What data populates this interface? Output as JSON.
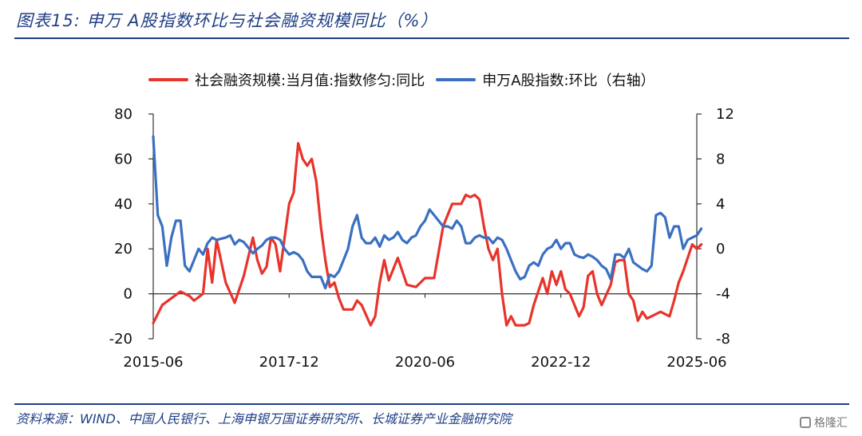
{
  "title": "图表15:  申万 A股指数环比与社会融资规模同比（%）",
  "source": "资料来源：WIND、中国人民银行、上海申银万国证券研究所、长城证券产业金融研究院",
  "logo_text": "格隆汇",
  "chart_data": {
    "type": "line",
    "title": "",
    "x_ticks": [
      "2015-06",
      "2017-12",
      "2020-06",
      "2022-12",
      "2025-06"
    ],
    "x_range": [
      "2015-06",
      "2025-06"
    ],
    "y_left": {
      "range": [
        -20,
        80
      ],
      "ticks": [
        -20,
        0,
        20,
        40,
        60,
        80
      ]
    },
    "y_right": {
      "range": [
        -8,
        12
      ],
      "ticks": [
        -8,
        -4,
        0,
        4,
        8,
        12
      ]
    },
    "legend_position": "top",
    "grid": false,
    "series": [
      {
        "name": "社会融资规模:当月值:指数修匀:同比",
        "axis": "left",
        "color": "#e8332b",
        "points": [
          [
            "2015-06",
            -13
          ],
          [
            "2015-08",
            -5
          ],
          [
            "2015-10",
            -2
          ],
          [
            "2015-12",
            1
          ],
          [
            "2016-02",
            -1
          ],
          [
            "2016-03",
            -3
          ],
          [
            "2016-05",
            0
          ],
          [
            "2016-06",
            20
          ],
          [
            "2016-07",
            5
          ],
          [
            "2016-08",
            24
          ],
          [
            "2016-10",
            5
          ],
          [
            "2016-12",
            -4
          ],
          [
            "2017-02",
            8
          ],
          [
            "2017-04",
            25
          ],
          [
            "2017-05",
            15
          ],
          [
            "2017-06",
            9
          ],
          [
            "2017-07",
            12
          ],
          [
            "2017-08",
            25
          ],
          [
            "2017-09",
            22
          ],
          [
            "2017-10",
            10
          ],
          [
            "2017-12",
            40
          ],
          [
            "2018-01",
            45
          ],
          [
            "2018-02",
            67
          ],
          [
            "2018-03",
            60
          ],
          [
            "2018-04",
            57
          ],
          [
            "2018-05",
            60
          ],
          [
            "2018-06",
            50
          ],
          [
            "2018-07",
            30
          ],
          [
            "2018-08",
            15
          ],
          [
            "2018-09",
            3
          ],
          [
            "2018-10",
            5
          ],
          [
            "2018-11",
            -2
          ],
          [
            "2018-12",
            -7
          ],
          [
            "2019-02",
            -7
          ],
          [
            "2019-03",
            -3
          ],
          [
            "2019-04",
            -5
          ],
          [
            "2019-06",
            -14
          ],
          [
            "2019-07",
            -10
          ],
          [
            "2019-08",
            5
          ],
          [
            "2019-09",
            15
          ],
          [
            "2019-10",
            6
          ],
          [
            "2019-12",
            16
          ],
          [
            "2020-02",
            4
          ],
          [
            "2020-04",
            3
          ],
          [
            "2020-06",
            7
          ],
          [
            "2020-08",
            7
          ],
          [
            "2020-10",
            30
          ],
          [
            "2020-12",
            40
          ],
          [
            "2021-02",
            40
          ],
          [
            "2021-03",
            44
          ],
          [
            "2021-04",
            43
          ],
          [
            "2021-05",
            44
          ],
          [
            "2021-06",
            42
          ],
          [
            "2021-07",
            30
          ],
          [
            "2021-08",
            20
          ],
          [
            "2021-09",
            15
          ],
          [
            "2021-10",
            20
          ],
          [
            "2021-11",
            0
          ],
          [
            "2021-12",
            -14
          ],
          [
            "2022-01",
            -10
          ],
          [
            "2022-02",
            -14
          ],
          [
            "2022-04",
            -14
          ],
          [
            "2022-05",
            -13
          ],
          [
            "2022-06",
            -5
          ],
          [
            "2022-08",
            7
          ],
          [
            "2022-09",
            0
          ],
          [
            "2022-10",
            10
          ],
          [
            "2022-11",
            4
          ],
          [
            "2022-12",
            10
          ],
          [
            "2023-01",
            2
          ],
          [
            "2023-02",
            0
          ],
          [
            "2023-04",
            -10
          ],
          [
            "2023-05",
            -6
          ],
          [
            "2023-06",
            8
          ],
          [
            "2023-07",
            10
          ],
          [
            "2023-08",
            0
          ],
          [
            "2023-09",
            -5
          ],
          [
            "2023-11",
            4
          ],
          [
            "2023-12",
            14
          ],
          [
            "2024-01",
            15
          ],
          [
            "2024-02",
            15
          ],
          [
            "2024-03",
            0
          ],
          [
            "2024-04",
            -3
          ],
          [
            "2024-05",
            -12
          ],
          [
            "2024-06",
            -8
          ],
          [
            "2024-07",
            -11
          ],
          [
            "2024-08",
            -10
          ],
          [
            "2024-10",
            -8
          ],
          [
            "2024-12",
            -10
          ],
          [
            "2025-01",
            -3
          ],
          [
            "2025-02",
            5
          ],
          [
            "2025-03",
            10
          ],
          [
            "2025-05",
            22
          ],
          [
            "2025-06",
            20
          ],
          [
            "2025-07",
            22
          ]
        ]
      },
      {
        "name": "申万A股指数:环比（右轴）",
        "axis": "right",
        "color": "#3a6fc2",
        "points": [
          [
            "2015-06",
            10
          ],
          [
            "2015-07",
            3
          ],
          [
            "2015-08",
            2
          ],
          [
            "2015-09",
            -1.5
          ],
          [
            "2015-10",
            1
          ],
          [
            "2015-11",
            2.5
          ],
          [
            "2015-12",
            2.5
          ],
          [
            "2016-01",
            -1.5
          ],
          [
            "2016-02",
            -2
          ],
          [
            "2016-03",
            -1
          ],
          [
            "2016-04",
            0
          ],
          [
            "2016-05",
            -0.5
          ],
          [
            "2016-06",
            0.5
          ],
          [
            "2016-07",
            1
          ],
          [
            "2016-08",
            0.8
          ],
          [
            "2016-10",
            1
          ],
          [
            "2016-11",
            1.2
          ],
          [
            "2016-12",
            0.4
          ],
          [
            "2017-01",
            0.8
          ],
          [
            "2017-02",
            0.6
          ],
          [
            "2017-04",
            -0.4
          ],
          [
            "2017-05",
            0
          ],
          [
            "2017-06",
            0.3
          ],
          [
            "2017-07",
            0.8
          ],
          [
            "2017-08",
            1
          ],
          [
            "2017-09",
            1
          ],
          [
            "2017-10",
            0.8
          ],
          [
            "2017-11",
            0
          ],
          [
            "2017-12",
            -0.5
          ],
          [
            "2018-01",
            -0.3
          ],
          [
            "2018-02",
            -0.5
          ],
          [
            "2018-03",
            -1
          ],
          [
            "2018-04",
            -2
          ],
          [
            "2018-05",
            -2.5
          ],
          [
            "2018-06",
            -2.5
          ],
          [
            "2018-07",
            -2.5
          ],
          [
            "2018-08",
            -3.5
          ],
          [
            "2018-09",
            -2.3
          ],
          [
            "2018-10",
            -2.5
          ],
          [
            "2018-11",
            -2
          ],
          [
            "2018-12",
            -1
          ],
          [
            "2019-01",
            0
          ],
          [
            "2019-02",
            2
          ],
          [
            "2019-03",
            3
          ],
          [
            "2019-04",
            1
          ],
          [
            "2019-05",
            0.5
          ],
          [
            "2019-06",
            0.5
          ],
          [
            "2019-07",
            1
          ],
          [
            "2019-08",
            0.2
          ],
          [
            "2019-09",
            1.2
          ],
          [
            "2019-10",
            0.8
          ],
          [
            "2019-11",
            1
          ],
          [
            "2019-12",
            1.5
          ],
          [
            "2020-01",
            0.8
          ],
          [
            "2020-02",
            0.5
          ],
          [
            "2020-03",
            1
          ],
          [
            "2020-04",
            1.2
          ],
          [
            "2020-05",
            2
          ],
          [
            "2020-06",
            2.5
          ],
          [
            "2020-07",
            3.5
          ],
          [
            "2020-08",
            3
          ],
          [
            "2020-09",
            2.5
          ],
          [
            "2020-10",
            2
          ],
          [
            "2020-11",
            2
          ],
          [
            "2020-12",
            1.8
          ],
          [
            "2021-01",
            2.5
          ],
          [
            "2021-02",
            2
          ],
          [
            "2021-03",
            0.5
          ],
          [
            "2021-04",
            0.5
          ],
          [
            "2021-05",
            1
          ],
          [
            "2021-06",
            1.2
          ],
          [
            "2021-07",
            1
          ],
          [
            "2021-08",
            1
          ],
          [
            "2021-09",
            0.5
          ],
          [
            "2021-10",
            1
          ],
          [
            "2021-11",
            0.8
          ],
          [
            "2021-12",
            0
          ],
          [
            "2022-01",
            -1
          ],
          [
            "2022-02",
            -2
          ],
          [
            "2022-03",
            -2.7
          ],
          [
            "2022-04",
            -2.5
          ],
          [
            "2022-05",
            -1.5
          ],
          [
            "2022-06",
            -1.2
          ],
          [
            "2022-07",
            -1.5
          ],
          [
            "2022-08",
            -0.5
          ],
          [
            "2022-09",
            0
          ],
          [
            "2022-10",
            0.2
          ],
          [
            "2022-11",
            0.8
          ],
          [
            "2022-12",
            0
          ],
          [
            "2023-01",
            0.5
          ],
          [
            "2023-02",
            0.5
          ],
          [
            "2023-03",
            -0.5
          ],
          [
            "2023-04",
            -0.7
          ],
          [
            "2023-05",
            -0.8
          ],
          [
            "2023-06",
            -0.5
          ],
          [
            "2023-07",
            -0.7
          ],
          [
            "2023-08",
            -1
          ],
          [
            "2023-09",
            -1.5
          ],
          [
            "2023-10",
            -1.8
          ],
          [
            "2023-11",
            -2.7
          ],
          [
            "2023-12",
            -0.5
          ],
          [
            "2024-01",
            -0.5
          ],
          [
            "2024-02",
            -0.8
          ],
          [
            "2024-03",
            0
          ],
          [
            "2024-04",
            -1.2
          ],
          [
            "2024-05",
            -1.5
          ],
          [
            "2024-06",
            -1.8
          ],
          [
            "2024-07",
            -2
          ],
          [
            "2024-08",
            -1.5
          ],
          [
            "2024-09",
            3
          ],
          [
            "2024-10",
            3.2
          ],
          [
            "2024-11",
            2.8
          ],
          [
            "2024-12",
            1
          ],
          [
            "2025-01",
            2
          ],
          [
            "2025-02",
            2
          ],
          [
            "2025-03",
            0
          ],
          [
            "2025-04",
            0.8
          ],
          [
            "2025-05",
            1
          ],
          [
            "2025-06",
            1.2
          ],
          [
            "2025-07",
            1.8
          ]
        ]
      }
    ]
  }
}
